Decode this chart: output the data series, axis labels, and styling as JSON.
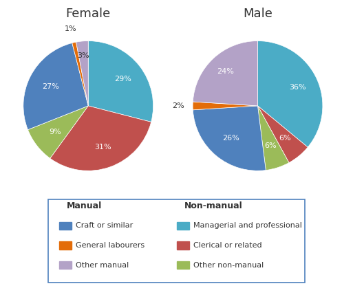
{
  "female_values": [
    29,
    31,
    9,
    27,
    1,
    3
  ],
  "male_values": [
    36,
    6,
    6,
    26,
    2,
    24
  ],
  "labels_pct_female": [
    "29%",
    "31%",
    "9%",
    "27%",
    "1%",
    "3%"
  ],
  "labels_pct_male": [
    "36%",
    "6%",
    "6%",
    "26%",
    "2%",
    "24%"
  ],
  "colors": [
    "#4bacc6",
    "#c0504d",
    "#9bbb59",
    "#4f81bd",
    "#e36c09",
    "#b3a2c7"
  ],
  "title_female": "Female",
  "title_male": "Male",
  "legend_manual_title": "Manual",
  "legend_nonmanual_title": "Non-manual",
  "legend_items_manual": [
    "Craft or similar",
    "General labourers",
    "Other manual"
  ],
  "legend_items_nonmanual": [
    "Managerial and professional",
    "Clerical or related",
    "Other non-manual"
  ],
  "legend_colors_manual": [
    "#4f81bd",
    "#e36c09",
    "#b3a2c7"
  ],
  "legend_colors_nonmanual": [
    "#4bacc6",
    "#c0504d",
    "#9bbb59"
  ],
  "label_radii_female": [
    0.68,
    0.68,
    0.65,
    0.65,
    1.22,
    0.78
  ],
  "label_radii_male": [
    0.68,
    0.65,
    0.65,
    0.65,
    1.22,
    0.72
  ],
  "label_colors_female": [
    "white",
    "white",
    "white",
    "white",
    "#333333",
    "#333333"
  ],
  "label_colors_male": [
    "white",
    "white",
    "white",
    "white",
    "#333333",
    "white"
  ],
  "bg_color": "#ffffff",
  "border_color": "#4f81bd"
}
